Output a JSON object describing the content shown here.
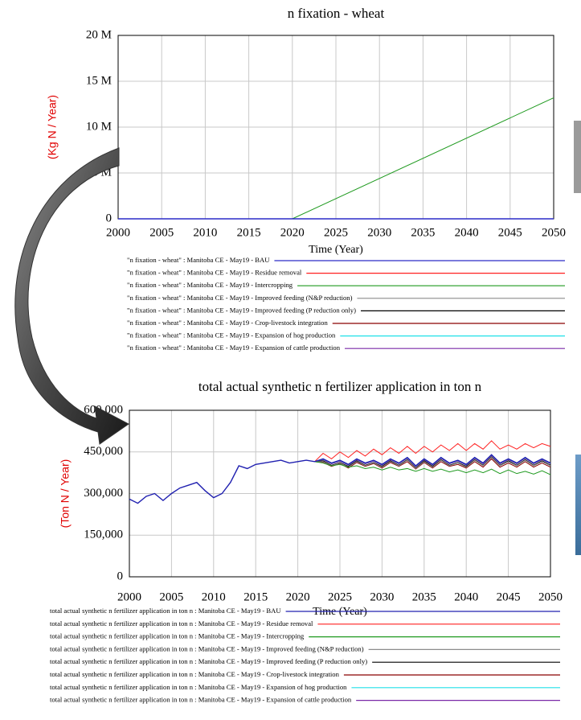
{
  "chart_data": [
    {
      "type": "line",
      "title": "n fixation - wheat",
      "xlabel": "Time (Year)",
      "ylabel": "(Kg N / Year)",
      "x": [
        2000,
        2020,
        2050
      ],
      "xlim": [
        2000,
        2050
      ],
      "xticks": [
        2000,
        2005,
        2010,
        2015,
        2020,
        2025,
        2030,
        2035,
        2040,
        2045,
        2050
      ],
      "ylim": [
        0,
        20000000
      ],
      "yticks": [
        0,
        {
          "value": 5000000,
          "label": "5 M"
        },
        {
          "value": 10000000,
          "label": "10 M"
        },
        {
          "value": 15000000,
          "label": "15 M"
        },
        {
          "value": 20000000,
          "label": "20 M"
        }
      ],
      "grid": true,
      "series": [
        {
          "name": "\"n fixation - wheat\" : Manitoba CE - May19 - BAU",
          "color": "#2b2bc8",
          "values": [
            0,
            0,
            0
          ]
        },
        {
          "name": "\"n fixation - wheat\" : Manitoba CE - May19 - Residue removal",
          "color": "#ff2020",
          "values": [
            0,
            0,
            0
          ]
        },
        {
          "name": "\"n fixation - wheat\" : Manitoba CE - May19 - Intercropping",
          "color": "#1f9a1f",
          "values": [
            0,
            0,
            13200000
          ]
        },
        {
          "name": "\"n fixation - wheat\" : Manitoba CE - May19 - Improved feeding (N&P reduction)",
          "color": "#8c8c8c",
          "values": [
            0,
            0,
            0
          ]
        },
        {
          "name": "\"n fixation - wheat\" : Manitoba CE - May19 - Improved feeding (P reduction only)",
          "color": "#000000",
          "values": [
            0,
            0,
            0
          ]
        },
        {
          "name": "\"n fixation - wheat\" : Manitoba CE - May19 - Crop-livestock integration",
          "color": "#8b0000",
          "values": [
            0,
            0,
            0
          ]
        },
        {
          "name": "\"n fixation - wheat\" : Manitoba CE - May19 - Expansion of hog production",
          "color": "#20e0e8",
          "values": [
            0,
            0,
            0
          ]
        },
        {
          "name": "\"n fixation - wheat\" : Manitoba CE - May19 - Expansion of cattle production",
          "color": "#7a2aa8",
          "values": [
            0,
            0,
            0
          ]
        }
      ]
    },
    {
      "type": "line",
      "title": "total actual synthetic n fertilizer application in ton n",
      "xlabel": "Time (Year)",
      "ylabel": "(Ton N / Year)",
      "x": [
        2000,
        2001,
        2002,
        2003,
        2004,
        2005,
        2006,
        2007,
        2008,
        2009,
        2010,
        2011,
        2012,
        2013,
        2014,
        2015,
        2016,
        2017,
        2018,
        2019,
        2020,
        2021,
        2022,
        2023,
        2024,
        2025,
        2026,
        2027,
        2028,
        2029,
        2030,
        2031,
        2032,
        2033,
        2034,
        2035,
        2036,
        2037,
        2038,
        2039,
        2040,
        2041,
        2042,
        2043,
        2044,
        2045,
        2046,
        2047,
        2048,
        2049,
        2050
      ],
      "xlim": [
        2000,
        2050
      ],
      "xticks": [
        2000,
        2005,
        2010,
        2015,
        2020,
        2025,
        2030,
        2035,
        2040,
        2045,
        2050
      ],
      "ylim": [
        0,
        600000
      ],
      "yticks": [
        0,
        {
          "value": 150000,
          "label": "150,000"
        },
        {
          "value": 300000,
          "label": "300,000"
        },
        {
          "value": 450000,
          "label": "450,000"
        },
        {
          "value": 600000,
          "label": "600,000"
        }
      ],
      "grid": true,
      "series": [
        {
          "name": "total actual synthetic n fertilizer application in ton n : Manitoba CE - May19 - BAU",
          "color": "#2020b0",
          "values": [
            280000,
            265000,
            290000,
            300000,
            275000,
            300000,
            320000,
            330000,
            340000,
            310000,
            285000,
            300000,
            340000,
            400000,
            390000,
            405000,
            410000,
            415000,
            420000,
            410000,
            415000,
            420000,
            415000,
            425000,
            410000,
            420000,
            405000,
            425000,
            410000,
            420000,
            405000,
            425000,
            410000,
            430000,
            400000,
            425000,
            405000,
            430000,
            410000,
            420000,
            405000,
            430000,
            410000,
            440000,
            410000,
            425000,
            410000,
            430000,
            410000,
            425000,
            410000
          ]
        },
        {
          "name": "total actual synthetic n fertilizer application in ton n : Manitoba CE - May19 - Residue removal",
          "color": "#ff2020",
          "values": [
            null,
            null,
            null,
            null,
            null,
            null,
            null,
            null,
            null,
            null,
            null,
            null,
            null,
            null,
            null,
            null,
            null,
            null,
            null,
            null,
            null,
            null,
            415000,
            445000,
            425000,
            450000,
            430000,
            455000,
            435000,
            460000,
            440000,
            465000,
            445000,
            470000,
            445000,
            470000,
            450000,
            475000,
            455000,
            480000,
            455000,
            480000,
            460000,
            490000,
            460000,
            475000,
            460000,
            480000,
            465000,
            480000,
            470000
          ]
        },
        {
          "name": "total actual synthetic n fertilizer application in ton n : Manitoba CE - May19 - Intercropping",
          "color": "#1f9a1f",
          "values": [
            null,
            null,
            null,
            null,
            null,
            null,
            null,
            null,
            null,
            null,
            null,
            null,
            null,
            null,
            null,
            null,
            null,
            null,
            null,
            null,
            null,
            null,
            415000,
            410000,
            400000,
            405000,
            395000,
            400000,
            390000,
            395000,
            385000,
            395000,
            385000,
            390000,
            380000,
            390000,
            380000,
            388000,
            378000,
            385000,
            375000,
            385000,
            375000,
            388000,
            372000,
            385000,
            372000,
            380000,
            370000,
            382000,
            368000
          ]
        },
        {
          "name": "total actual synthetic n fertilizer application in ton n : Manitoba CE - May19 - Improved feeding (N&P reduction)",
          "color": "#8c8c8c",
          "values": [
            null,
            null,
            null,
            null,
            null,
            null,
            null,
            null,
            null,
            null,
            null,
            null,
            null,
            null,
            null,
            null,
            null,
            null,
            null,
            null,
            null,
            null,
            415000,
            415000,
            400000,
            410000,
            395000,
            415000,
            400000,
            410000,
            395000,
            415000,
            400000,
            420000,
            390000,
            415000,
            395000,
            420000,
            400000,
            410000,
            395000,
            420000,
            400000,
            430000,
            400000,
            415000,
            400000,
            420000,
            400000,
            415000,
            400000
          ]
        },
        {
          "name": "total actual synthetic n fertilizer application in ton n : Manitoba CE - May19 - Improved feeding (P reduction only)",
          "color": "#000000",
          "values": [
            null,
            null,
            null,
            null,
            null,
            null,
            null,
            null,
            null,
            null,
            null,
            null,
            null,
            null,
            null,
            null,
            null,
            null,
            null,
            null,
            null,
            null,
            415000,
            418000,
            402000,
            412000,
            398000,
            418000,
            402000,
            412000,
            398000,
            418000,
            402000,
            422000,
            392000,
            418000,
            398000,
            422000,
            402000,
            412000,
            398000,
            422000,
            402000,
            432000,
            402000,
            418000,
            402000,
            422000,
            402000,
            418000,
            402000
          ]
        },
        {
          "name": "total actual synthetic n fertilizer application in ton n : Manitoba CE - May19 - Crop-livestock integration",
          "color": "#8b0000",
          "values": [
            null,
            null,
            null,
            null,
            null,
            null,
            null,
            null,
            null,
            null,
            null,
            null,
            null,
            null,
            null,
            null,
            null,
            null,
            null,
            null,
            null,
            null,
            415000,
            412000,
            398000,
            408000,
            392000,
            412000,
            398000,
            408000,
            392000,
            412000,
            398000,
            415000,
            388000,
            412000,
            392000,
            415000,
            398000,
            405000,
            392000,
            415000,
            395000,
            425000,
            395000,
            410000,
            395000,
            415000,
            395000,
            410000,
            395000
          ]
        },
        {
          "name": "total actual synthetic n fertilizer application in ton n : Manitoba CE - May19 - Expansion of hog production",
          "color": "#20e0e8",
          "values": [
            null,
            null,
            null,
            null,
            null,
            null,
            null,
            null,
            null,
            null,
            null,
            null,
            null,
            null,
            null,
            null,
            null,
            null,
            null,
            null,
            null,
            null,
            415000,
            424000,
            409000,
            419000,
            404000,
            424000,
            409000,
            419000,
            404000,
            424000,
            409000,
            429000,
            399000,
            424000,
            404000,
            429000,
            409000,
            419000,
            404000,
            429000,
            409000,
            439000,
            409000,
            424000,
            409000,
            429000,
            409000,
            424000,
            409000
          ]
        },
        {
          "name": "total actual synthetic n fertilizer application in ton n : Manitoba CE - May19 - Expansion of cattle production",
          "color": "#7a2aa8",
          "values": [
            null,
            null,
            null,
            null,
            null,
            null,
            null,
            null,
            null,
            null,
            null,
            null,
            null,
            null,
            null,
            null,
            null,
            null,
            null,
            null,
            null,
            null,
            415000,
            422000,
            407000,
            417000,
            402000,
            422000,
            407000,
            417000,
            402000,
            422000,
            407000,
            427000,
            397000,
            422000,
            402000,
            427000,
            407000,
            417000,
            402000,
            427000,
            407000,
            437000,
            407000,
            422000,
            407000,
            427000,
            407000,
            422000,
            407000
          ]
        }
      ]
    }
  ]
}
